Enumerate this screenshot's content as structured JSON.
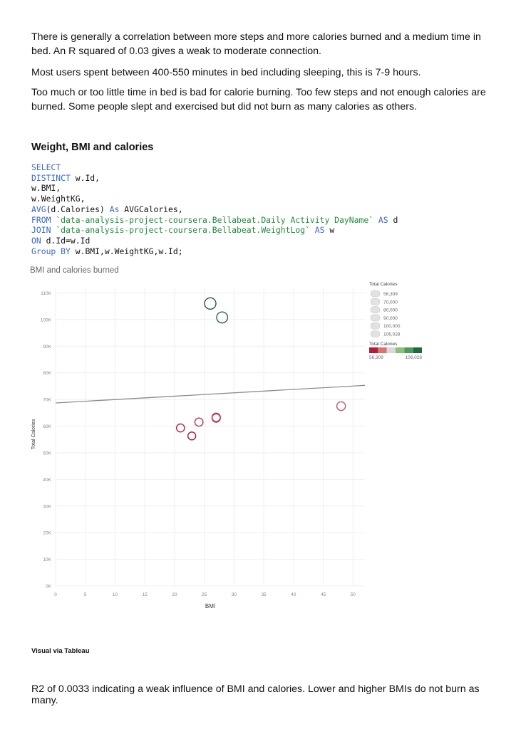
{
  "paragraphs": {
    "p1": "There is generally a correlation between more steps and more calories burned and a medium time in bed. An R squared of 0.03 gives a weak to moderate connection.",
    "p2": "Most users spent between 400-550 minutes in bed including sleeping, this is 7-9 hours.",
    "p3": "Too much or too little time in bed is bad for calorie burning. Too few steps and not enough calories are burned. Some people slept and exercised but did not burn as many calories as others."
  },
  "section_heading": "Weight, BMI and calories",
  "sql": {
    "l1": "SELECT",
    "l2_kw": "DISTINCT",
    "l2_rest": " w.Id,",
    "l3": "w.BMI,",
    "l4": "w.WeightKG,",
    "l5_kw": "AVG",
    "l5_mid": "(d.Calories) ",
    "l5_kw2": "As",
    "l5_rest": " AVGCalories,",
    "l6_kw": "FROM",
    "l6_str": " `data-analysis-project-coursera.Bellabeat.Daily Activity DayName`",
    "l6_kw2": " AS",
    "l6_rest": " d",
    "l7_kw": "JOIN",
    "l7_str": " `data-analysis-project-coursera.Bellabeat.WeightLog`",
    "l7_kw2": " AS",
    "l7_rest": " w",
    "l8_kw": "ON",
    "l8_rest": " d.Id=w.Id",
    "l9_kw": "Group BY",
    "l9_rest": " w.BMI,w.WeightKG,w.Id;"
  },
  "chart_title": "BMI and calories burned",
  "caption": "Visual via Tableau",
  "footer": "R2 of 0.0033 indicating a weak influence of BMI and calories. Lower and higher BMIs do not burn as many.",
  "chart_data": {
    "type": "scatter",
    "title": "BMI and calories burned",
    "xlabel": "BMI",
    "ylabel": "Total Calories",
    "xlim": [
      0,
      52
    ],
    "ylim": [
      0,
      112000
    ],
    "x_ticks": [
      "0",
      "5",
      "10",
      "15",
      "20",
      "25",
      "30",
      "35",
      "40",
      "45",
      "50"
    ],
    "y_ticks": [
      "0K",
      "10K",
      "20K",
      "30K",
      "40K",
      "50K",
      "60K",
      "70K",
      "80K",
      "90K",
      "100K",
      "110K"
    ],
    "grid": true,
    "points": [
      {
        "x": 26.0,
        "y": 106028
      },
      {
        "x": 28.0,
        "y": 100800
      },
      {
        "x": 21.0,
        "y": 59300
      },
      {
        "x": 22.9,
        "y": 56309
      },
      {
        "x": 24.1,
        "y": 61500
      },
      {
        "x": 27.0,
        "y": 63000
      },
      {
        "x": 27.0,
        "y": 63300
      },
      {
        "x": 48.0,
        "y": 67500
      }
    ],
    "trend_line": {
      "start": {
        "x": 0,
        "y": 68700
      },
      "end": {
        "x": 52,
        "y": 75300
      }
    },
    "legend_position": "top-right",
    "size_legend": {
      "title": "Total Calories",
      "entries": [
        "56,309",
        "70,000",
        "80,000",
        "90,000",
        "100,000",
        "106,028"
      ]
    },
    "color_legend": {
      "title": "Total Calories",
      "min_label": "56,309",
      "max_label": "106,028",
      "colors": [
        "#b51a3a",
        "#e0706b",
        "#d9d9d9",
        "#8bc07c",
        "#4d9a5a",
        "#1f6a3a"
      ]
    }
  }
}
